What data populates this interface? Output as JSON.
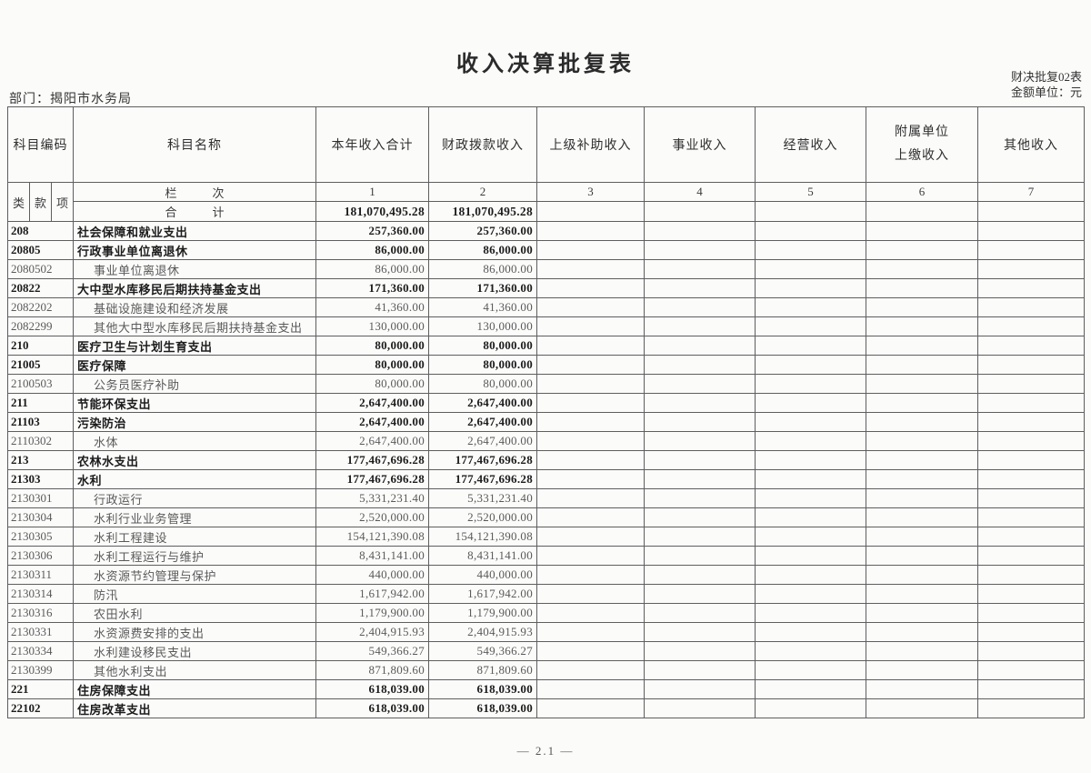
{
  "page": {
    "title": "收入决算批复表",
    "form_no": "财决批复02表",
    "unit_note": "金额单位：元",
    "department_label": "部门：",
    "department_value": "揭阳市水务局",
    "page_number": "— 2.1 —"
  },
  "table": {
    "headers": {
      "code": "科目编码",
      "name": "科目名称",
      "col1": "本年收入合计",
      "col2": "财政拨款收入",
      "col3": "上级补助收入",
      "col4": "事业收入",
      "col5": "经营收入",
      "col6_line1": "附属单位",
      "col6_line2": "上缴收入",
      "col7": "其他收入",
      "sub_code_lei": "类",
      "sub_code_kuan": "款",
      "sub_code_xiang": "项",
      "lanci_label": "栏　　　次",
      "total_label": "合　　　计",
      "column_numbers": [
        "1",
        "2",
        "3",
        "4",
        "5",
        "6",
        "7"
      ]
    },
    "total_row": {
      "col1": "181,070,495.28",
      "col2": "181,070,495.28"
    },
    "rows": [
      {
        "code": "208",
        "name": "社会保障和就业支出",
        "col1": "257,360.00",
        "col2": "257,360.00",
        "level": "class"
      },
      {
        "code": "20805",
        "name": "行政事业单位离退休",
        "col1": "86,000.00",
        "col2": "86,000.00",
        "level": "class"
      },
      {
        "code": "2080502",
        "name": "事业单位离退休",
        "col1": "86,000.00",
        "col2": "86,000.00",
        "level": "item"
      },
      {
        "code": "20822",
        "name": "大中型水库移民后期扶持基金支出",
        "col1": "171,360.00",
        "col2": "171,360.00",
        "level": "class"
      },
      {
        "code": "2082202",
        "name": "基础设施建设和经济发展",
        "col1": "41,360.00",
        "col2": "41,360.00",
        "level": "item"
      },
      {
        "code": "2082299",
        "name": "其他大中型水库移民后期扶持基金支出",
        "col1": "130,000.00",
        "col2": "130,000.00",
        "level": "item"
      },
      {
        "code": "210",
        "name": "医疗卫生与计划生育支出",
        "col1": "80,000.00",
        "col2": "80,000.00",
        "level": "class"
      },
      {
        "code": "21005",
        "name": "医疗保障",
        "col1": "80,000.00",
        "col2": "80,000.00",
        "level": "class"
      },
      {
        "code": "2100503",
        "name": "公务员医疗补助",
        "col1": "80,000.00",
        "col2": "80,000.00",
        "level": "item"
      },
      {
        "code": "211",
        "name": "节能环保支出",
        "col1": "2,647,400.00",
        "col2": "2,647,400.00",
        "level": "class"
      },
      {
        "code": "21103",
        "name": "污染防治",
        "col1": "2,647,400.00",
        "col2": "2,647,400.00",
        "level": "class"
      },
      {
        "code": "2110302",
        "name": "水体",
        "col1": "2,647,400.00",
        "col2": "2,647,400.00",
        "level": "item"
      },
      {
        "code": "213",
        "name": "农林水支出",
        "col1": "177,467,696.28",
        "col2": "177,467,696.28",
        "level": "class"
      },
      {
        "code": "21303",
        "name": "水利",
        "col1": "177,467,696.28",
        "col2": "177,467,696.28",
        "level": "class"
      },
      {
        "code": "2130301",
        "name": "行政运行",
        "col1": "5,331,231.40",
        "col2": "5,331,231.40",
        "level": "item"
      },
      {
        "code": "2130304",
        "name": "水利行业业务管理",
        "col1": "2,520,000.00",
        "col2": "2,520,000.00",
        "level": "item"
      },
      {
        "code": "2130305",
        "name": "水利工程建设",
        "col1": "154,121,390.08",
        "col2": "154,121,390.08",
        "level": "item"
      },
      {
        "code": "2130306",
        "name": "水利工程运行与维护",
        "col1": "8,431,141.00",
        "col2": "8,431,141.00",
        "level": "item"
      },
      {
        "code": "2130311",
        "name": "水资源节约管理与保护",
        "col1": "440,000.00",
        "col2": "440,000.00",
        "level": "item"
      },
      {
        "code": "2130314",
        "name": "防汛",
        "col1": "1,617,942.00",
        "col2": "1,617,942.00",
        "level": "item"
      },
      {
        "code": "2130316",
        "name": "农田水利",
        "col1": "1,179,900.00",
        "col2": "1,179,900.00",
        "level": "item"
      },
      {
        "code": "2130331",
        "name": "水资源费安排的支出",
        "col1": "2,404,915.93",
        "col2": "2,404,915.93",
        "level": "item"
      },
      {
        "code": "2130334",
        "name": "水利建设移民支出",
        "col1": "549,366.27",
        "col2": "549,366.27",
        "level": "item"
      },
      {
        "code": "2130399",
        "name": "其他水利支出",
        "col1": "871,809.60",
        "col2": "871,809.60",
        "level": "item"
      },
      {
        "code": "221",
        "name": "住房保障支出",
        "col1": "618,039.00",
        "col2": "618,039.00",
        "level": "class"
      },
      {
        "code": "22102",
        "name": "住房改革支出",
        "col1": "618,039.00",
        "col2": "618,039.00",
        "level": "class"
      }
    ]
  }
}
